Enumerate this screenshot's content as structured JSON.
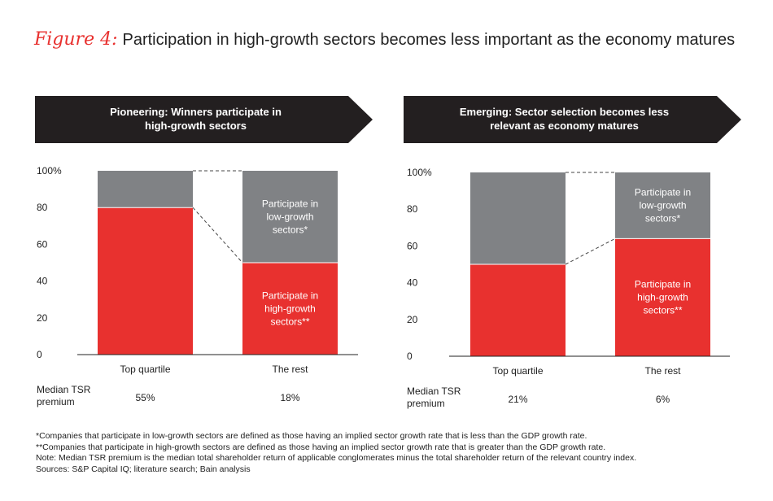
{
  "title": {
    "figure_label": "Figure 4:",
    "text": "Participation in high-growth sectors becomes less important as the economy matures"
  },
  "colors": {
    "high_growth": "#e8312f",
    "low_growth": "#808285",
    "banner": "#231f20",
    "connector": "#444444"
  },
  "chart_data": [
    {
      "type": "bar",
      "stacked": true,
      "banner": [
        "Pioneering: Winners participate in",
        "high-growth sectors"
      ],
      "categories": [
        "Top quartile",
        "The rest"
      ],
      "ylim": [
        0,
        100
      ],
      "yticks": [
        "100%",
        "80",
        "60",
        "40",
        "20",
        "0"
      ],
      "series": [
        {
          "key": "high",
          "values": [
            80,
            50
          ]
        },
        {
          "key": "low",
          "values": [
            20,
            50
          ]
        }
      ],
      "bar_labels": {
        "low": [
          "Participate in",
          "low-growth",
          "sectors*"
        ],
        "high": [
          "Participate in",
          "high-growth",
          "sectors**"
        ]
      },
      "row_label": [
        "Median TSR",
        "premium"
      ],
      "tsr_premium": [
        "55%",
        "18%"
      ]
    },
    {
      "type": "bar",
      "stacked": true,
      "banner": [
        "Emerging: Sector selection becomes less",
        "relevant as economy matures"
      ],
      "categories": [
        "Top quartile",
        "The rest"
      ],
      "ylim": [
        0,
        100
      ],
      "yticks": [
        "100%",
        "80",
        "60",
        "40",
        "20",
        "0"
      ],
      "series": [
        {
          "key": "high",
          "values": [
            50,
            64
          ]
        },
        {
          "key": "low",
          "values": [
            50,
            36
          ]
        }
      ],
      "bar_labels": {
        "low": [
          "Participate in",
          "low-growth",
          "sectors*"
        ],
        "high": [
          "Participate in",
          "high-growth",
          "sectors**"
        ]
      },
      "row_label": [
        "Median TSR",
        "premium"
      ],
      "tsr_premium": [
        "21%",
        "6%"
      ]
    }
  ],
  "footnotes": [
    "*Companies that participate in low-growth sectors are defined as those having an implied sector growth rate that is less than the GDP growth rate.",
    "**Companies that participate in high-growth sectors are defined as those having an implied sector growth rate that is greater than the GDP growth rate.",
    "Note: Median TSR premium is the median total shareholder return of applicable conglomerates minus the total shareholder return of the relevant country index.",
    "Sources: S&P Capital IQ; literature search; Bain analysis"
  ]
}
